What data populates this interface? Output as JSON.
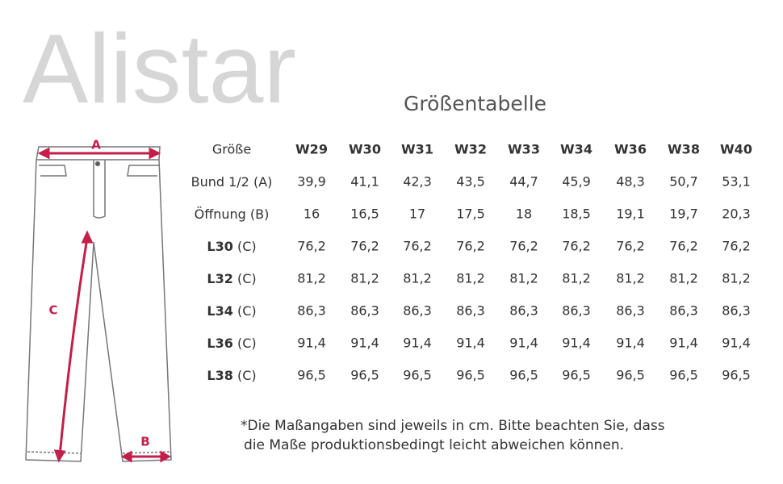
{
  "header": {
    "title": "Alistar",
    "subtitle": "Größentabelle"
  },
  "diagram": {
    "labels": [
      "A",
      "B",
      "C"
    ]
  },
  "table": {
    "columns": [
      "Größe",
      "W29",
      "W30",
      "W31",
      "W32",
      "W33",
      "W34",
      "W36",
      "W38",
      "W40"
    ],
    "rows": [
      {
        "label": "Bund 1/2 (A)",
        "cells": [
          "39,9",
          "41,1",
          "42,3",
          "43,5",
          "44,7",
          "45,9",
          "48,3",
          "50,7",
          "53,1"
        ]
      },
      {
        "label": "Öffnung (B)",
        "cells": [
          "16",
          "16,5",
          "17",
          "17,5",
          "18",
          "18,5",
          "19,1",
          "19,7",
          "20,3"
        ]
      },
      {
        "label": "L30",
        "suffix": "(C)",
        "bold": true,
        "cells": [
          "76,2",
          "76,2",
          "76,2",
          "76,2",
          "76,2",
          "76,2",
          "76,2",
          "76,2",
          "76,2"
        ]
      },
      {
        "label": "L32",
        "suffix": "(C)",
        "bold": true,
        "cells": [
          "81,2",
          "81,2",
          "81,2",
          "81,2",
          "81,2",
          "81,2",
          "81,2",
          "81,2",
          "81,2"
        ]
      },
      {
        "label": "L34",
        "suffix": "(C)",
        "bold": true,
        "cells": [
          "86,3",
          "86,3",
          "86,3",
          "86,3",
          "86,3",
          "86,3",
          "86,3",
          "86,3",
          "86,3"
        ]
      },
      {
        "label": "L36",
        "suffix": "(C)",
        "bold": true,
        "cells": [
          "91,4",
          "91,4",
          "91,4",
          "91,4",
          "91,4",
          "91,4",
          "91,4",
          "91,4",
          "91,4"
        ]
      },
      {
        "label": "L38",
        "suffix": "(C)",
        "bold": true,
        "cells": [
          "96,5",
          "96,5",
          "96,5",
          "96,5",
          "96,5",
          "96,5",
          "96,5",
          "96,5",
          "96,5"
        ]
      }
    ]
  },
  "note": [
    "*Die Maßangaben sind jeweils in cm. Bitte beachten Sie, dass",
    "die Maße produktionsbedingt leicht abweichen können."
  ]
}
